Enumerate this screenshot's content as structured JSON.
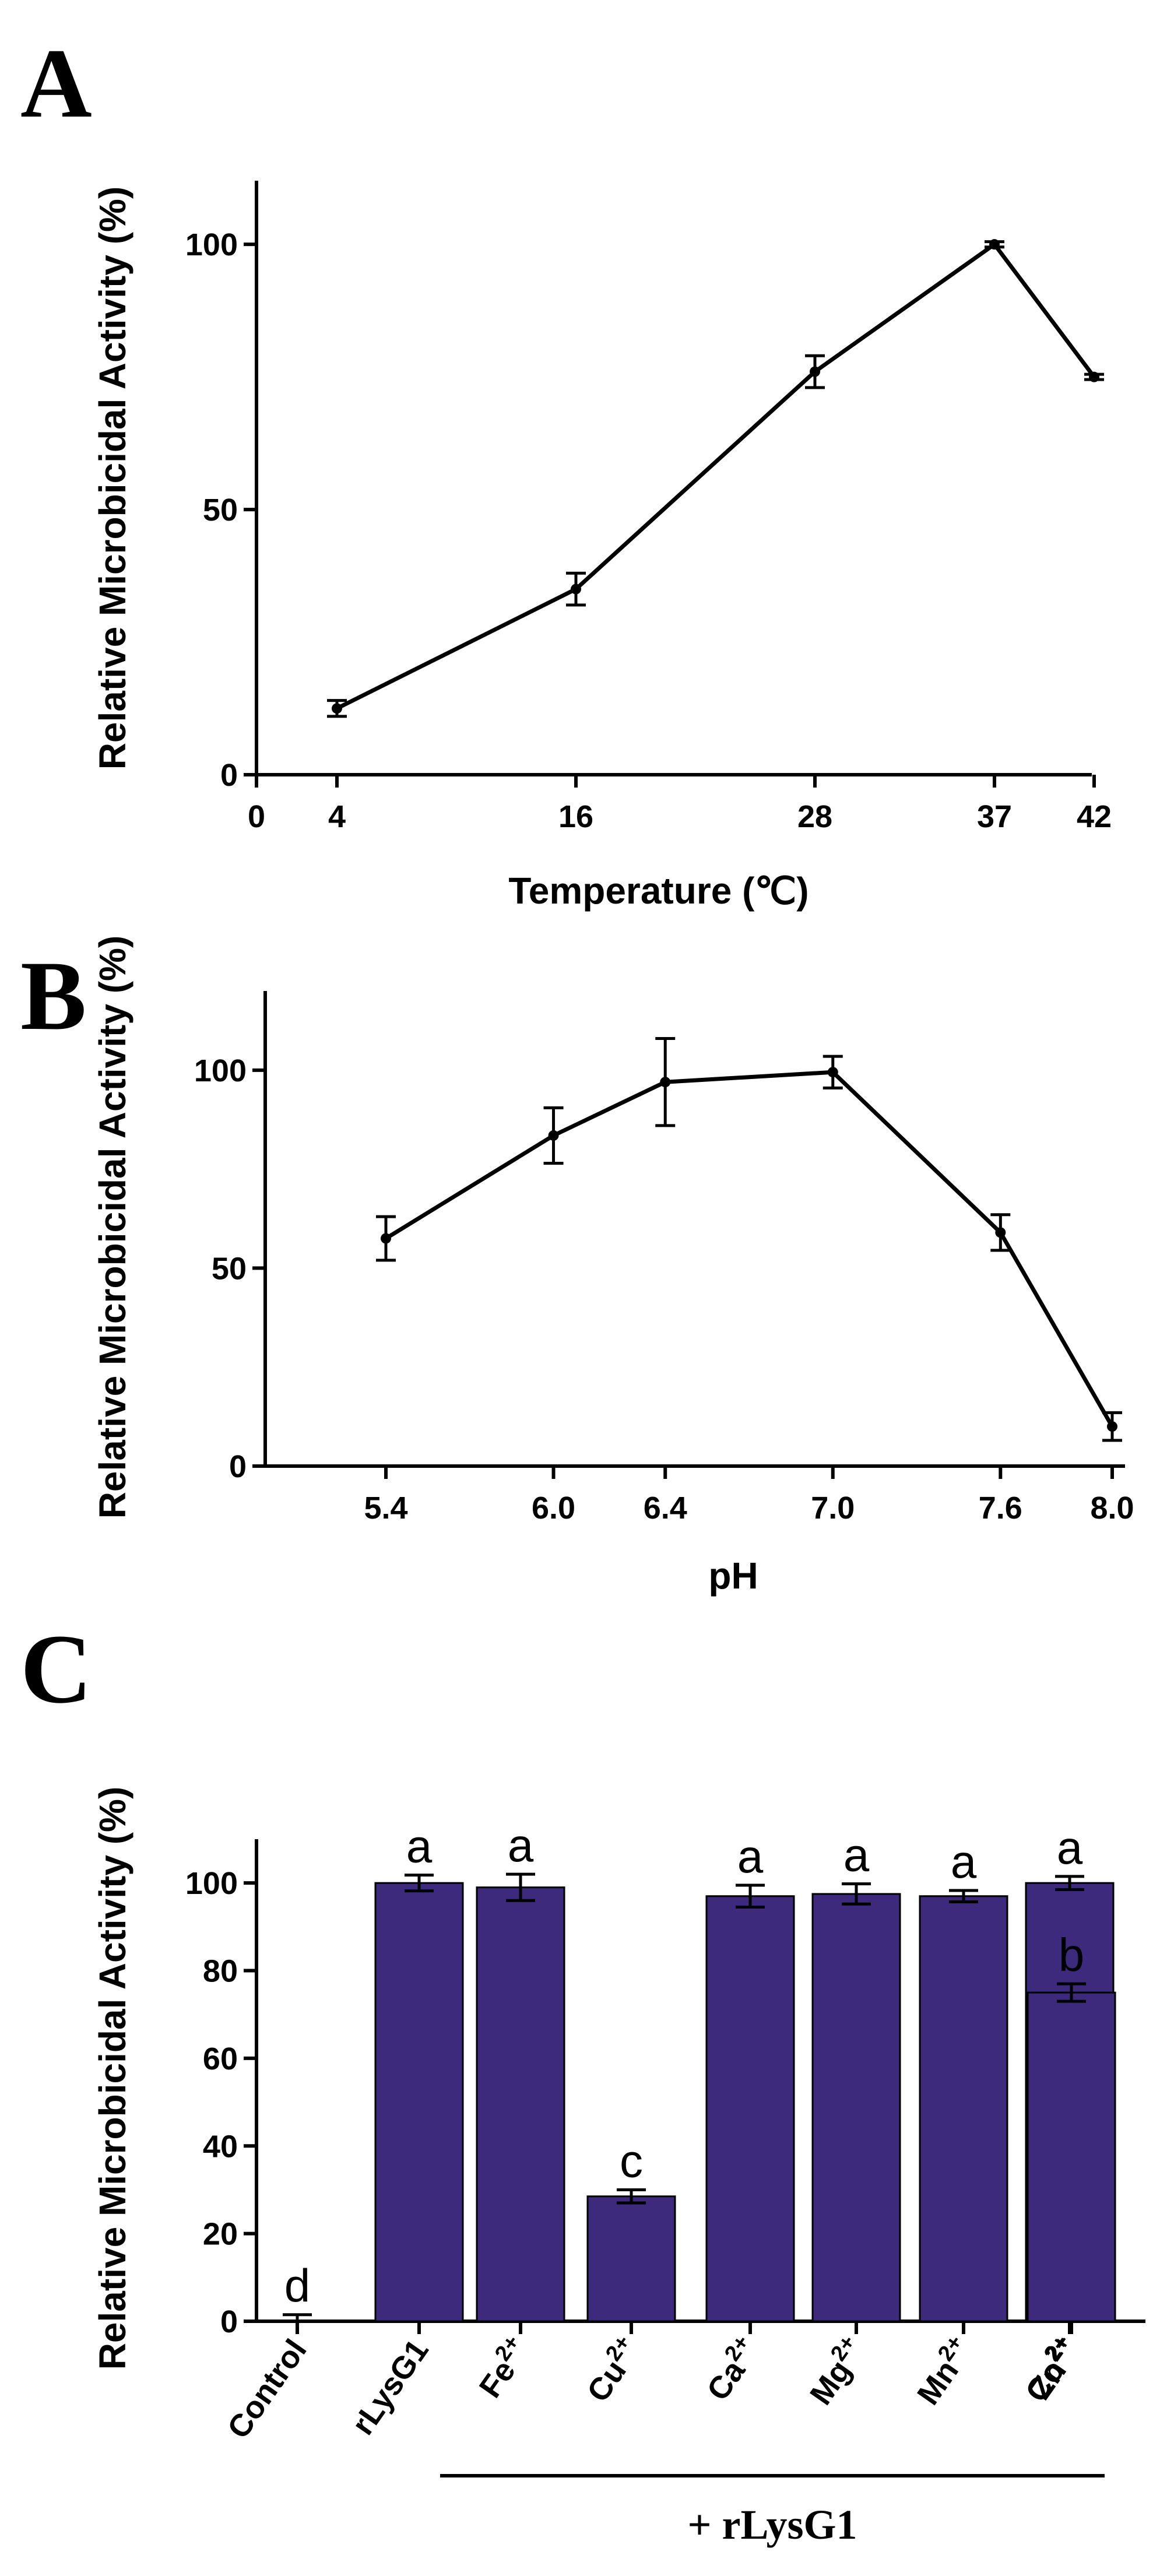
{
  "chart_data": [
    {
      "panel_label": "A",
      "type": "line",
      "x": [
        4,
        16,
        28,
        37,
        42
      ],
      "y": [
        12.5,
        35,
        76,
        100,
        75
      ],
      "error": [
        1.5,
        3,
        3,
        0.5,
        0.5
      ],
      "xticks": [
        "0",
        "4",
        "16",
        "28",
        "37",
        "42"
      ],
      "xtick_values": [
        0,
        4,
        16,
        28,
        37,
        42
      ],
      "yticks": [
        "0",
        "50",
        "100"
      ],
      "ylim": [
        0,
        112
      ],
      "xlabel": "Temperature (℃)",
      "ylabel": "Relative Microbicidal Activity (%)"
    },
    {
      "panel_label": "B",
      "type": "line",
      "x": [
        5.4,
        6.0,
        6.4,
        7.0,
        7.6,
        8.0
      ],
      "y": [
        57.5,
        83.5,
        97,
        99.5,
        59,
        10
      ],
      "error": [
        5.5,
        7,
        11,
        4,
        4.5,
        3.5
      ],
      "xticks": [
        "5.4",
        "6.0",
        "6.4",
        "7.0",
        "7.6",
        "8.0"
      ],
      "xtick_values": [
        5.4,
        6.0,
        6.4,
        7.0,
        7.6,
        8.0
      ],
      "yticks": [
        "0",
        "50",
        "100"
      ],
      "ylim": [
        0,
        120
      ],
      "xlabel": "pH",
      "ylabel": "Relative Microbicidal Activity (%)"
    },
    {
      "panel_label": "C",
      "type": "bar",
      "categories": [
        "Control",
        "rLysG1",
        "Fe",
        "Cu",
        "Ca",
        "Mg",
        "Mn",
        "Co",
        "Zn"
      ],
      "superscripts": [
        "",
        "",
        "2+",
        "2+",
        "2+",
        "2+",
        "2+",
        "2+",
        "2+"
      ],
      "values": [
        0,
        100,
        99,
        28.5,
        97,
        97.5,
        97,
        100,
        75
      ],
      "error": [
        1.5,
        1.8,
        3,
        1.5,
        2.5,
        2.3,
        1.3,
        1.5,
        2
      ],
      "significance": [
        "d",
        "a",
        "a",
        "c",
        "a",
        "a",
        "a",
        "a",
        "b"
      ],
      "group_label": "+ rLysG1",
      "yticks": [
        "0",
        "20",
        "40",
        "60",
        "80",
        "100"
      ],
      "ylim": [
        0,
        110
      ],
      "xlabel": "",
      "ylabel": "Relative Microbicidal Activity (%)",
      "bar_color": "#3d2a7d"
    }
  ]
}
